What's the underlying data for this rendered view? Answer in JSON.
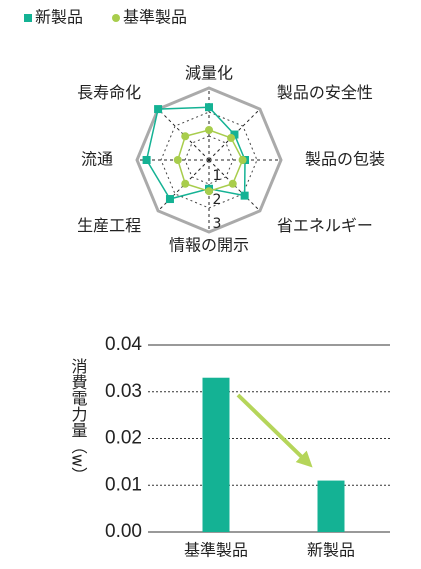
{
  "chart_data": [
    {
      "type": "radar",
      "categories": [
        "減量化",
        "製品の安全性",
        "製品の包装",
        "省エネルギー",
        "情報の開示",
        "生産工程",
        "流通",
        "長寿命化"
      ],
      "series": [
        {
          "name": "新製品",
          "color": "#14b294",
          "values": [
            2.2,
            1.5,
            1.5,
            2.1,
            1.2,
            2.3,
            2.6,
            3
          ]
        },
        {
          "name": "基準製品",
          "color": "#a8cd4c",
          "values": [
            1.25,
            1.3,
            1.4,
            1.4,
            1.3,
            1.4,
            1.3,
            1.4
          ]
        }
      ],
      "rlim": [
        0,
        3
      ],
      "rticks": [
        1,
        2,
        3
      ]
    },
    {
      "type": "bar",
      "ylabel": "消費電力量（w）",
      "categories": [
        "基準製品",
        "新製品"
      ],
      "values": [
        0.033,
        0.011
      ],
      "color": "#14b294",
      "ylim": [
        0,
        0.04
      ],
      "yticks": [
        {
          "value": 0,
          "label": "0.00"
        },
        0.01,
        0.02,
        0.03,
        0.04
      ],
      "grid": true
    }
  ]
}
